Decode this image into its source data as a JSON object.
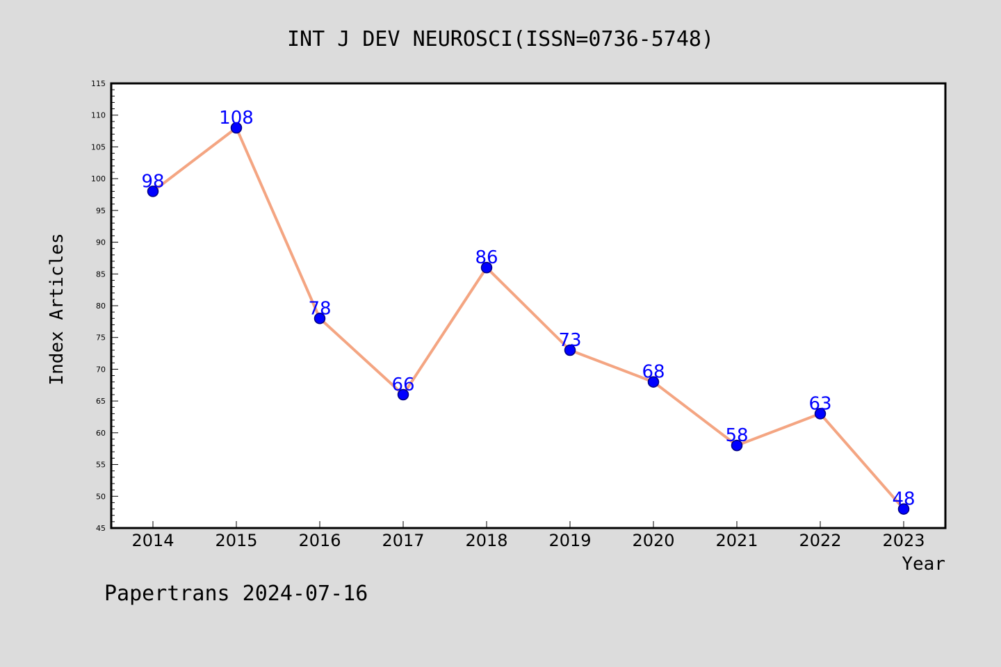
{
  "chart_data": {
    "type": "line",
    "title": "INT J DEV NEUROSCI(ISSN=0736-5748)",
    "xlabel": "Year",
    "ylabel": "Index Articles",
    "categories": [
      "2014",
      "2015",
      "2016",
      "2017",
      "2018",
      "2019",
      "2020",
      "2021",
      "2022",
      "2023"
    ],
    "series": [
      {
        "values": [
          98,
          108,
          78,
          66,
          86,
          73,
          68,
          58,
          63,
          48
        ]
      }
    ],
    "ylim": [
      45,
      115
    ],
    "yticks": [
      45,
      50,
      55,
      60,
      65,
      70,
      75,
      80,
      85,
      90,
      95,
      100,
      105,
      110,
      115
    ],
    "grid": false,
    "data_labels": true,
    "colors": {
      "line": "#f4a582",
      "marker": "#0000ff",
      "marker_edge": "#000080",
      "label": "#0000ff",
      "background": "#dcdcdc",
      "plot_bg": "#ffffff"
    }
  },
  "footer": {
    "text": "Papertrans 2024-07-16"
  }
}
